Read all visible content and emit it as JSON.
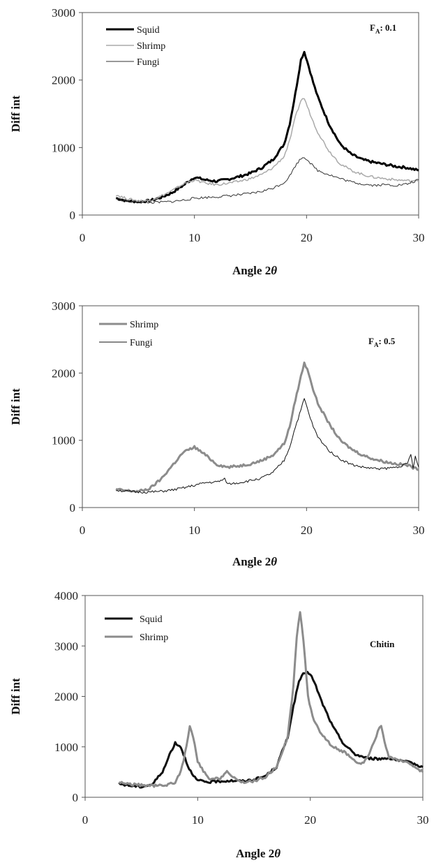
{
  "chart_data": [
    {
      "type": "line",
      "xlabel": "Angle 2θ",
      "ylabel": "Diff int",
      "xlim": [
        0,
        30
      ],
      "ylim": [
        0,
        3000
      ],
      "xticks": [
        "0",
        "10",
        "20",
        "30"
      ],
      "yticks": [
        "0",
        "1000",
        "2000",
        "3000"
      ],
      "annotation": "F",
      "annotation_sub": "A",
      "annotation_value": ": 0.1",
      "legend_position": "top-left",
      "grid": false,
      "series": [
        {
          "name": "Squid",
          "color": "#000000",
          "width": 3,
          "x": [
            3,
            4,
            5,
            6,
            7,
            8,
            9,
            10,
            11,
            12,
            13,
            14,
            15,
            16,
            17,
            18,
            18.5,
            19,
            19.5,
            19.8,
            20.2,
            20.6,
            21,
            22,
            23,
            24,
            25,
            26,
            27,
            28,
            29,
            30
          ],
          "y": [
            250,
            210,
            200,
            210,
            260,
            330,
            440,
            560,
            520,
            500,
            530,
            570,
            620,
            700,
            820,
            1050,
            1350,
            1800,
            2300,
            2420,
            2200,
            1960,
            1750,
            1350,
            1050,
            900,
            820,
            780,
            750,
            720,
            700,
            660
          ]
        },
        {
          "name": "Shrimp",
          "color": "#aaaaaa",
          "width": 1.5,
          "x": [
            3,
            4,
            5,
            6,
            7,
            8,
            9,
            10,
            11,
            12,
            13,
            14,
            15,
            16,
            17,
            18,
            18.5,
            19,
            19.5,
            19.8,
            20.2,
            20.6,
            21,
            22,
            23,
            24,
            25,
            26,
            27,
            28,
            29,
            30
          ],
          "y": [
            300,
            240,
            210,
            215,
            280,
            360,
            460,
            520,
            470,
            450,
            470,
            500,
            540,
            600,
            700,
            870,
            1100,
            1450,
            1700,
            1730,
            1550,
            1380,
            1230,
            950,
            760,
            660,
            600,
            560,
            540,
            520,
            510,
            500
          ]
        },
        {
          "name": "Fungi",
          "color": "#333333",
          "width": 1,
          "x": [
            3,
            4,
            5,
            6,
            7,
            8,
            9,
            10,
            11,
            12,
            13,
            14,
            15,
            16,
            17,
            18,
            18.5,
            19,
            19.5,
            19.8,
            20.2,
            20.6,
            21,
            22,
            23,
            24,
            25,
            26,
            27,
            28,
            29,
            30
          ],
          "y": [
            250,
            200,
            190,
            185,
            190,
            200,
            220,
            250,
            260,
            270,
            285,
            300,
            320,
            350,
            400,
            480,
            580,
            730,
            840,
            860,
            800,
            720,
            660,
            600,
            540,
            490,
            460,
            440,
            450,
            440,
            460,
            520
          ]
        }
      ]
    },
    {
      "type": "line",
      "xlabel": "Angle 2θ",
      "ylabel": "Diff int",
      "xlim": [
        0,
        30
      ],
      "ylim": [
        0,
        3000
      ],
      "xticks": [
        "0",
        "10",
        "20",
        "30"
      ],
      "yticks": [
        "0",
        "1000",
        "2000",
        "3000"
      ],
      "annotation": "F",
      "annotation_sub": "A",
      "annotation_value": ": 0.5",
      "legend_position": "top-left",
      "grid": false,
      "series": [
        {
          "name": "Shrimp",
          "color": "#8c8c8c",
          "width": 3,
          "x": [
            3,
            4,
            5,
            6,
            7,
            8,
            9,
            10,
            11,
            12,
            13,
            14,
            15,
            16,
            17,
            18,
            18.5,
            19,
            19.5,
            19.8,
            20.2,
            20.6,
            21,
            22,
            23,
            24,
            25,
            26,
            27,
            28,
            29,
            30
          ],
          "y": [
            270,
            250,
            240,
            280,
            420,
            620,
            820,
            900,
            780,
            640,
            600,
            620,
            650,
            700,
            780,
            950,
            1200,
            1600,
            1950,
            2150,
            2000,
            1750,
            1550,
            1250,
            1000,
            870,
            780,
            720,
            680,
            650,
            630,
            560
          ]
        },
        {
          "name": "Fungi",
          "color": "#111111",
          "width": 1,
          "x": [
            3,
            4,
            5,
            6,
            7,
            8,
            9,
            10,
            11,
            12,
            12.7,
            13,
            14,
            15,
            16,
            17,
            18,
            18.5,
            19,
            19.5,
            19.8,
            20.2,
            20.6,
            21,
            22,
            23,
            24,
            25,
            26,
            27,
            28,
            29,
            29.3,
            29.5,
            29.7,
            30
          ],
          "y": [
            260,
            240,
            230,
            230,
            240,
            260,
            290,
            330,
            370,
            380,
            420,
            350,
            370,
            400,
            440,
            520,
            700,
            900,
            1200,
            1450,
            1620,
            1400,
            1200,
            1050,
            850,
            720,
            640,
            600,
            580,
            580,
            600,
            650,
            800,
            580,
            750,
            600
          ]
        }
      ]
    },
    {
      "type": "line",
      "xlabel": "Angle 2θ",
      "ylabel": "Diff int",
      "xlim": [
        0,
        30
      ],
      "ylim": [
        0,
        4000
      ],
      "xticks": [
        "0",
        "10",
        "20",
        "30"
      ],
      "yticks": [
        "0",
        "1000",
        "2000",
        "3000",
        "4000"
      ],
      "annotation": "Chitin",
      "annotation_sub": "",
      "annotation_value": "",
      "legend_position": "top-left",
      "grid": false,
      "series": [
        {
          "name": "Squid",
          "color": "#111111",
          "width": 3,
          "x": [
            3,
            4,
            5,
            6,
            7,
            7.5,
            8,
            8.5,
            9,
            9.5,
            10,
            11,
            12,
            13,
            14,
            15,
            16,
            17,
            18,
            18.5,
            19,
            19.5,
            20,
            20.5,
            21,
            22,
            23,
            24,
            25,
            26,
            27,
            28,
            29,
            30
          ],
          "y": [
            270,
            230,
            210,
            260,
            550,
            850,
            1080,
            1000,
            700,
            450,
            330,
            300,
            320,
            330,
            320,
            350,
            420,
            600,
            1200,
            1800,
            2300,
            2480,
            2450,
            2200,
            1900,
            1400,
            1050,
            850,
            780,
            760,
            780,
            720,
            680,
            600
          ]
        },
        {
          "name": "Shrimp",
          "color": "#8c8c8c",
          "width": 3,
          "x": [
            3,
            4,
            5,
            6,
            7,
            8,
            8.5,
            9,
            9.3,
            9.6,
            10,
            11,
            12,
            12.6,
            13,
            14,
            15,
            16,
            17,
            18,
            18.5,
            18.8,
            19.1,
            19.4,
            19.8,
            20.2,
            21,
            22,
            23,
            24,
            24.5,
            25,
            25.5,
            26,
            26.3,
            26.6,
            27,
            28,
            29,
            30
          ],
          "y": [
            300,
            260,
            240,
            230,
            230,
            300,
            500,
            1000,
            1400,
            1200,
            700,
            350,
            380,
            520,
            400,
            300,
            320,
            400,
            600,
            1200,
            2200,
            3200,
            3680,
            3100,
            2000,
            1600,
            1250,
            1000,
            900,
            700,
            650,
            750,
            1000,
            1300,
            1420,
            1100,
            800,
            720,
            650,
            500
          ]
        }
      ]
    }
  ]
}
